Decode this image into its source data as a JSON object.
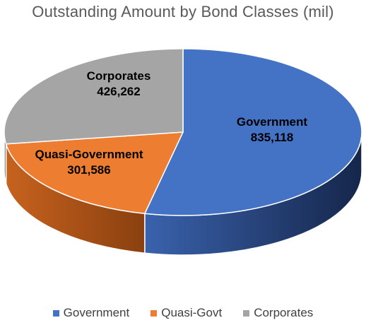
{
  "chart_data": {
    "type": "pie",
    "title": "Outstanding Amount by Bond Classes (mil)",
    "legend_position": "bottom",
    "three_d": true,
    "slices": [
      {
        "name": "Government",
        "label": "Government",
        "value": 835118,
        "value_label": "835,118",
        "color": "#4472C4",
        "side_color": "#1F3864"
      },
      {
        "name": "Quasi-Govt",
        "label": "Quasi-Government",
        "value": 301586,
        "value_label": "301,586",
        "color": "#ED7D31",
        "side_color": "#9E4A12"
      },
      {
        "name": "Corporates",
        "label": "Corporates",
        "value": 426262,
        "value_label": "426,262",
        "color": "#A5A5A5",
        "side_color": "#6E6E6E"
      }
    ]
  }
}
